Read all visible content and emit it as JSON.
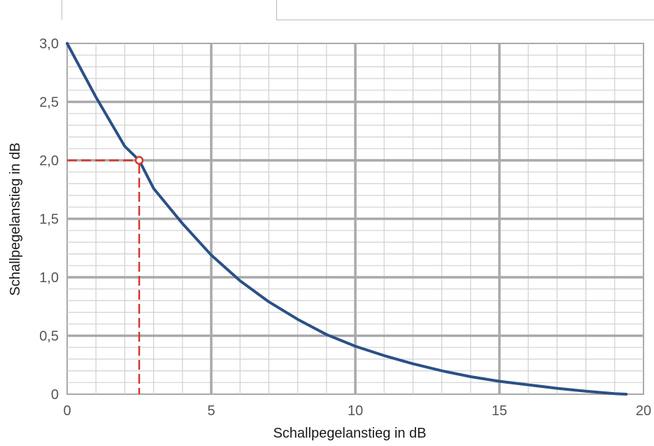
{
  "chart_data": {
    "type": "line",
    "xlabel": "Schallpegelanstieg in dB",
    "ylabel": "Schallpegelanstieg in dB",
    "xlim": [
      0,
      20
    ],
    "ylim": [
      0,
      3.0
    ],
    "x_ticks": [
      0,
      5,
      10,
      15,
      20
    ],
    "x_tick_labels": [
      "0",
      "5",
      "10",
      "15",
      "20"
    ],
    "y_ticks": [
      0,
      0.5,
      1.0,
      1.5,
      2.0,
      2.5,
      3.0
    ],
    "y_tick_labels": [
      "0",
      "0,5",
      "1,0",
      "1,5",
      "2,0",
      "2,5",
      "3,0"
    ],
    "grid": true,
    "series": [
      {
        "x": [
          0,
          1,
          2,
          2.5,
          3,
          4,
          5,
          6,
          7,
          8,
          9,
          10,
          11,
          12,
          13,
          14,
          15,
          16,
          17,
          18,
          19,
          19.4
        ],
        "y": [
          3.0,
          2.54,
          2.12,
          2.0,
          1.76,
          1.46,
          1.19,
          0.97,
          0.79,
          0.64,
          0.51,
          0.41,
          0.33,
          0.26,
          0.2,
          0.15,
          0.11,
          0.08,
          0.05,
          0.025,
          0.005,
          0.0
        ],
        "color": "#2b5087"
      }
    ],
    "annotation": {
      "x": 2.5,
      "y": 2.0,
      "color": "#d9342b",
      "style": "dashed"
    }
  }
}
